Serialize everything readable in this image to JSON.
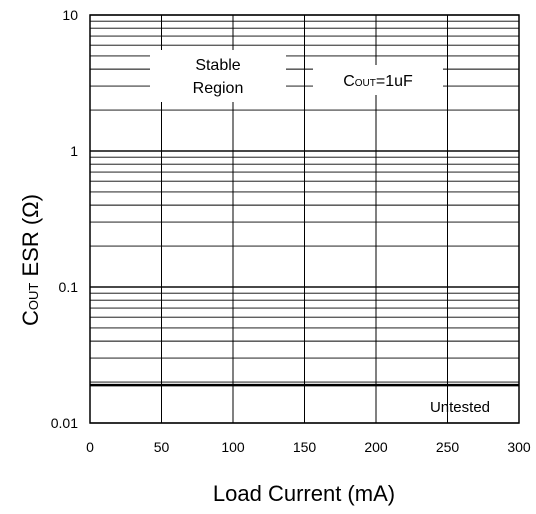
{
  "chart_data": {
    "type": "line",
    "title": "",
    "xlabel": "Load Current (mA)",
    "ylabel_main": "C",
    "ylabel_sub": "OUT",
    "ylabel_rest": " ESR (Ω)",
    "x_ticks": [
      "0",
      "50",
      "100",
      "150",
      "200",
      "250",
      "300"
    ],
    "y_ticks": [
      "0.01",
      "0.1",
      "1",
      "10"
    ],
    "xlim": [
      0,
      300
    ],
    "ylim": [
      0.01,
      10
    ],
    "y_scale": "log",
    "grid": true,
    "series": [
      {
        "x": [
          0,
          300
        ],
        "y": [
          0.019,
          0.019
        ]
      }
    ],
    "annotations": {
      "stable_line1": "Stable",
      "stable_line2": "Region",
      "cout_main": "C",
      "cout_sub": "OUT",
      "cout_rest": "=1uF",
      "untested": "Untested"
    }
  }
}
